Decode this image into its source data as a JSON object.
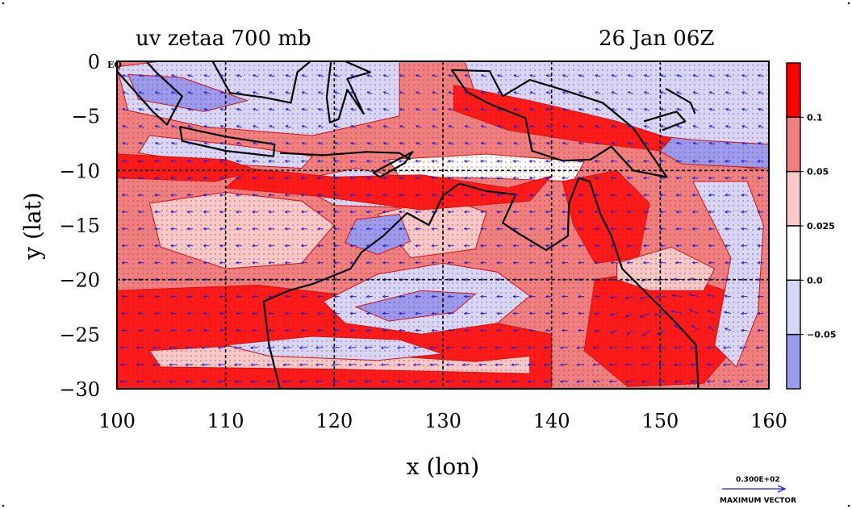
{
  "title_left": "uv zetaa 700 mb",
  "title_right": "26 Jan 06Z",
  "map": {
    "lon_range": [
      100,
      160
    ],
    "lat_range": [
      -30,
      0
    ],
    "xlabel": "x (lon)",
    "ylabel": "y (lat)",
    "x_ticks": [
      "100",
      "110",
      "120",
      "130",
      "140",
      "150",
      "160"
    ],
    "y_ticks": [
      "0",
      "−5",
      "−10",
      "−15",
      "−20",
      "−25",
      "−30"
    ],
    "eq_label": "EQ",
    "grid_interval_deg": 10
  },
  "colorbar": {
    "labels": [
      "0.1",
      "0.05",
      "0.025",
      "0.0",
      "−0.05"
    ],
    "colors": [
      "#ff0000",
      "#f08080",
      "#f6c8c8",
      "#ffffff",
      "#d6d6f8",
      "#9a9aef"
    ]
  },
  "vector_key": {
    "value": "0.300E+02",
    "label": "MAXIMUM VECTOR"
  },
  "colors": {
    "strong_positive": "#ff1a1a",
    "positive": "#f08080",
    "weak_positive": "#f6c8c8",
    "weak_negative": "#d6d6f8",
    "negative": "#9a9aef",
    "wind_vectors": "#1c1cd8",
    "coastline": "#000000"
  },
  "icons": {
    "vector_key_arrow": "arrow-right-icon"
  }
}
